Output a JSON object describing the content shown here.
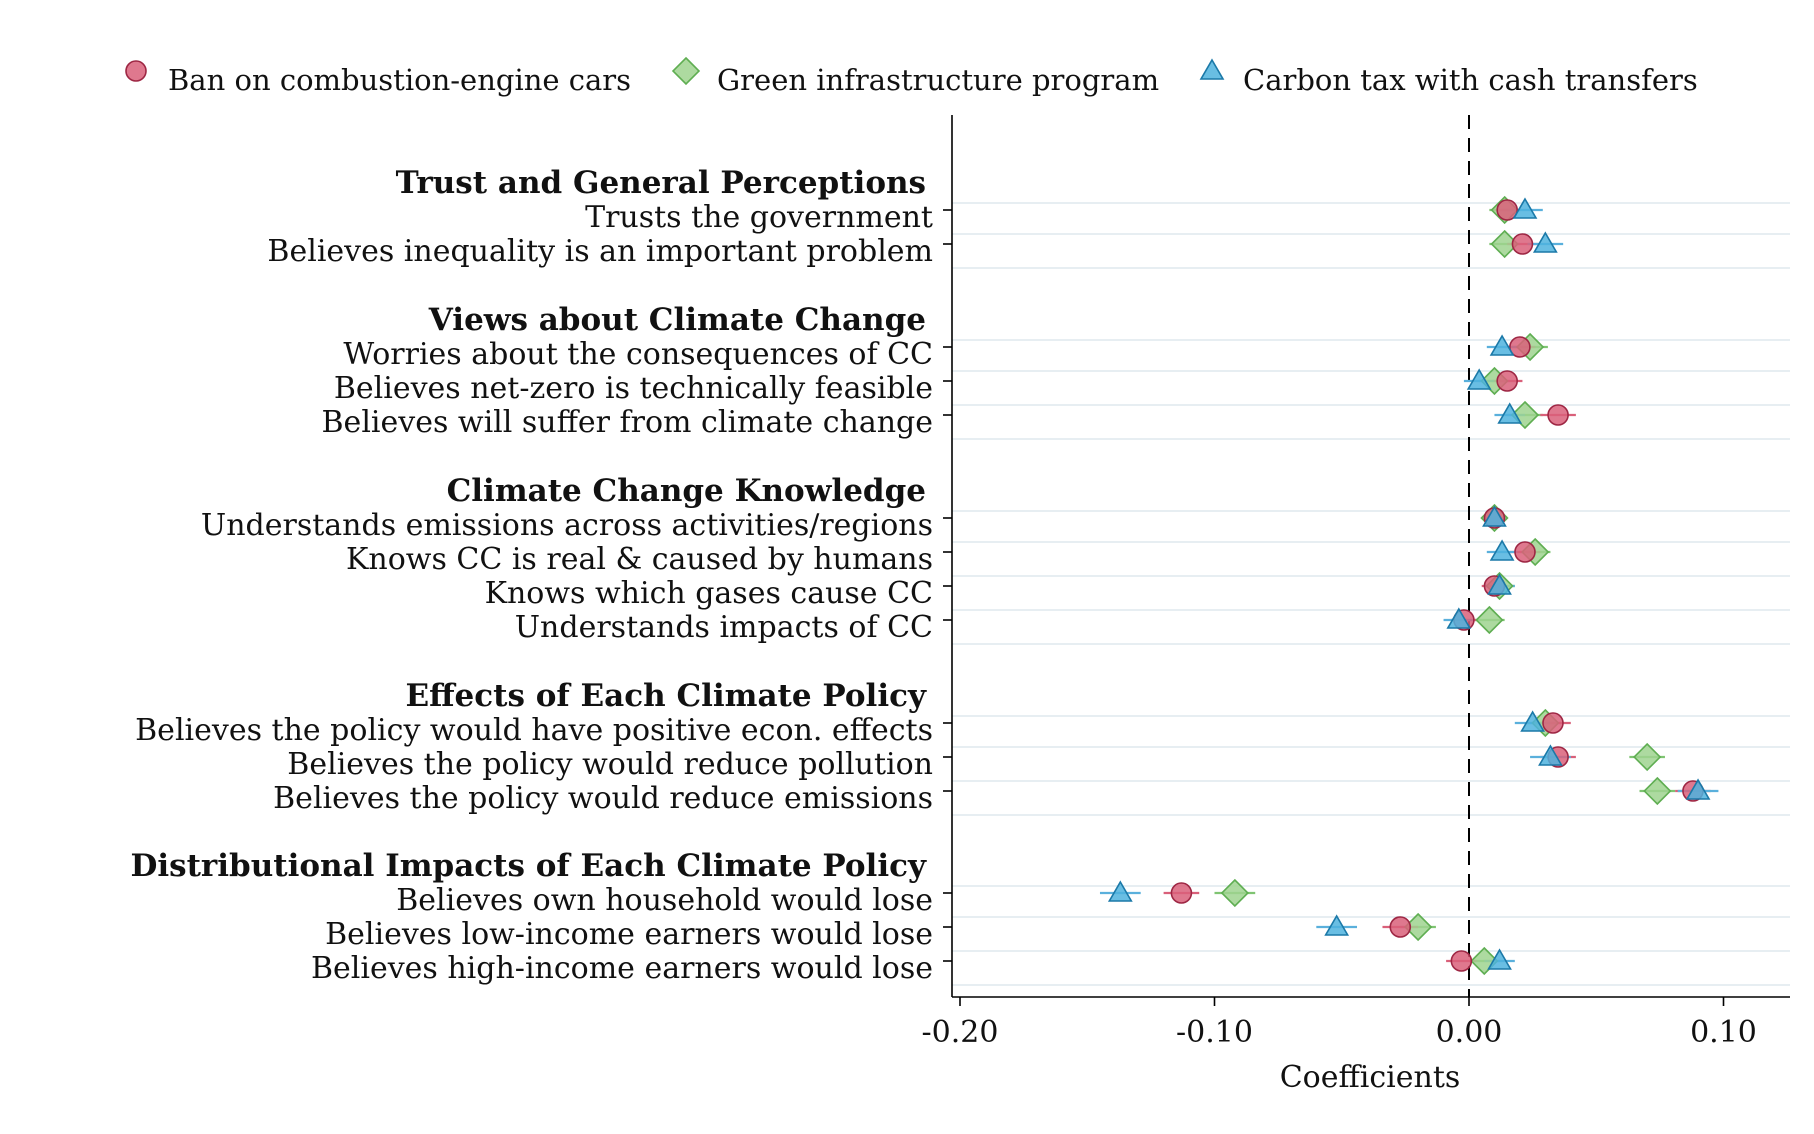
{
  "chart_data": {
    "type": "scatter",
    "xlabel": "Coefficients",
    "xlim": [
      -0.205,
      0.125
    ],
    "xticks": [
      {
        "value": -0.2,
        "label": "-0.20"
      },
      {
        "value": -0.1,
        "label": "-0.10"
      },
      {
        "value": 0.0,
        "label": "0.00"
      },
      {
        "value": 0.1,
        "label": "0.10"
      }
    ],
    "reference_line": 0.0,
    "legend_position": "top",
    "series": [
      {
        "name": "Ban on combustion-engine cars",
        "marker": "circle",
        "fill": "#d9607a",
        "stroke": "#9e2744",
        "ci": "#d9607a"
      },
      {
        "name": "Green infrastructure program",
        "marker": "diamond",
        "fill": "#9fd48f",
        "stroke": "#5fae52",
        "ci": "#7fc472"
      },
      {
        "name": "Carbon tax with cash transfers",
        "marker": "triangle",
        "fill": "#4fb3de",
        "stroke": "#1b79a8",
        "ci": "#5ab0dc"
      }
    ],
    "groups": [
      {
        "title": "Trust and General Perceptions",
        "rows": [
          {
            "label": "Trusts the government",
            "values": [
              0.015,
              0.014,
              0.022
            ],
            "ci": [
              [
                0.01,
                0.02
              ],
              [
                0.008,
                0.02
              ],
              [
                0.015,
                0.029
              ]
            ]
          },
          {
            "label": "Believes inequality is an important problem",
            "values": [
              0.021,
              0.014,
              0.03
            ],
            "ci": [
              [
                0.015,
                0.027
              ],
              [
                0.008,
                0.02
              ],
              [
                0.023,
                0.037
              ]
            ]
          }
        ]
      },
      {
        "title": "Views about Climate Change",
        "rows": [
          {
            "label": "Worries about the consequences of CC",
            "values": [
              0.02,
              0.024,
              0.013
            ],
            "ci": [
              [
                0.014,
                0.026
              ],
              [
                0.017,
                0.031
              ],
              [
                0.007,
                0.019
              ]
            ]
          },
          {
            "label": "Believes net-zero is technically feasible",
            "values": [
              0.015,
              0.01,
              0.004
            ],
            "ci": [
              [
                0.009,
                0.021
              ],
              [
                0.004,
                0.016
              ],
              [
                -0.002,
                0.01
              ]
            ]
          },
          {
            "label": "Believes will suffer from climate change",
            "values": [
              0.035,
              0.022,
              0.016
            ],
            "ci": [
              [
                0.028,
                0.042
              ],
              [
                0.015,
                0.029
              ],
              [
                0.01,
                0.022
              ]
            ]
          }
        ]
      },
      {
        "title": "Climate Change Knowledge",
        "rows": [
          {
            "label": "Understands emissions across activities/regions",
            "values": [
              0.01,
              0.01,
              0.01
            ],
            "ci": [
              [
                0.005,
                0.015
              ],
              [
                0.005,
                0.015
              ],
              [
                0.005,
                0.015
              ]
            ]
          },
          {
            "label": "Knows CC is real & caused by humans",
            "values": [
              0.022,
              0.026,
              0.013
            ],
            "ci": [
              [
                0.016,
                0.028
              ],
              [
                0.02,
                0.032
              ],
              [
                0.007,
                0.019
              ]
            ]
          },
          {
            "label": "Knows which gases cause CC",
            "values": [
              0.01,
              0.012,
              0.012
            ],
            "ci": [
              [
                0.005,
                0.015
              ],
              [
                0.006,
                0.018
              ],
              [
                0.006,
                0.018
              ]
            ]
          },
          {
            "label": "Understands impacts of CC",
            "values": [
              -0.002,
              0.008,
              -0.004
            ],
            "ci": [
              [
                -0.007,
                0.003
              ],
              [
                0.002,
                0.014
              ],
              [
                -0.01,
                0.002
              ]
            ]
          }
        ]
      },
      {
        "title": "Effects of Each Climate Policy",
        "rows": [
          {
            "label": "Believes the policy would have positive econ. effects",
            "values": [
              0.033,
              0.03,
              0.025
            ],
            "ci": [
              [
                0.026,
                0.04
              ],
              [
                0.023,
                0.037
              ],
              [
                0.018,
                0.032
              ]
            ]
          },
          {
            "label": "Believes the policy would reduce pollution",
            "values": [
              0.035,
              0.07,
              0.032
            ],
            "ci": [
              [
                0.028,
                0.042
              ],
              [
                0.063,
                0.077
              ],
              [
                0.024,
                0.04
              ]
            ]
          },
          {
            "label": "Believes the policy would reduce emissions",
            "values": [
              0.088,
              0.074,
              0.09
            ],
            "ci": [
              [
                0.081,
                0.095
              ],
              [
                0.067,
                0.081
              ],
              [
                0.082,
                0.098
              ]
            ]
          }
        ]
      },
      {
        "title": "Distributional Impacts of Each Climate Policy",
        "rows": [
          {
            "label": "Believes own household would lose",
            "values": [
              -0.113,
              -0.092,
              -0.137
            ],
            "ci": [
              [
                -0.12,
                -0.106
              ],
              [
                -0.1,
                -0.084
              ],
              [
                -0.145,
                -0.129
              ]
            ]
          },
          {
            "label": "Believes low-income earners would lose",
            "values": [
              -0.027,
              -0.02,
              -0.052
            ],
            "ci": [
              [
                -0.034,
                -0.02
              ],
              [
                -0.027,
                -0.013
              ],
              [
                -0.06,
                -0.044
              ]
            ]
          },
          {
            "label": "Believes high-income earners would lose",
            "values": [
              -0.003,
              0.006,
              0.012
            ],
            "ci": [
              [
                -0.009,
                0.003
              ],
              [
                0.0,
                0.012
              ],
              [
                0.006,
                0.018
              ]
            ]
          }
        ]
      }
    ]
  }
}
